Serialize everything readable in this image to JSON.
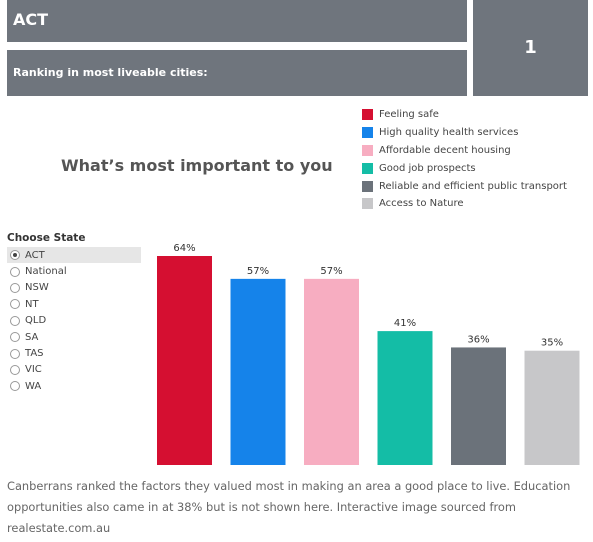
{
  "header": {
    "state": "ACT",
    "ranking_label": "Ranking in most liveable cities:",
    "ranking_value": "1"
  },
  "chart_data": {
    "type": "bar",
    "title": "What’s most important to you",
    "categories": [
      "Feeling safe",
      "High quality health services",
      "Affordable decent housing",
      "Good job prospects",
      "Reliable and efficient public transport",
      "Access to Nature"
    ],
    "values": [
      64,
      57,
      57,
      41,
      36,
      35
    ],
    "value_labels": [
      "64%",
      "57%",
      "57%",
      "41%",
      "36%",
      "35%"
    ],
    "colors": [
      "#d50f31",
      "#1583ea",
      "#f7adc1",
      "#14bda6",
      "#6b727a",
      "#c7c7c9"
    ],
    "ylim": [
      0,
      64
    ],
    "legend_position": "top-right"
  },
  "filter": {
    "title": "Choose State",
    "selected": "ACT",
    "options": [
      "ACT",
      "National",
      "NSW",
      "NT",
      "QLD",
      "SA",
      "TAS",
      "VIC",
      "WA"
    ]
  },
  "caption": "Canberrans ranked the factors they valued most in making an area a good place to live. Education opportunities also came in at 38% but is not shown here. Interactive image sourced from realestate.com.au"
}
